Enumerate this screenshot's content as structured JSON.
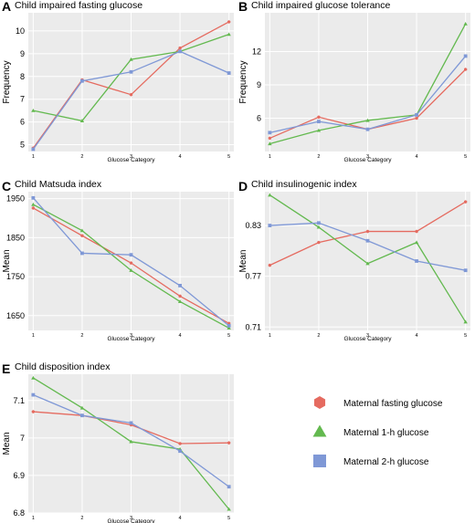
{
  "chart_data": [
    {
      "type": "line",
      "letter": "A",
      "title": "Child impaired fasting glucose",
      "xlabel": "Glucose Category",
      "ylabel": "Frequency",
      "x": [
        1,
        2,
        3,
        4,
        5
      ],
      "ylim": [
        4.7,
        10.8
      ],
      "yticks": [
        5,
        6,
        7,
        8,
        9,
        10
      ],
      "grid": true,
      "series": [
        {
          "name": "Maternal fasting glucose",
          "values": [
            4.85,
            7.85,
            7.2,
            9.25,
            10.4
          ]
        },
        {
          "name": "Maternal 1-h glucose",
          "values": [
            6.5,
            6.05,
            8.75,
            9.1,
            9.85
          ]
        },
        {
          "name": "Maternal 2-h glucose",
          "values": [
            4.8,
            7.8,
            8.2,
            9.1,
            8.15
          ]
        }
      ]
    },
    {
      "type": "line",
      "letter": "B",
      "title": "Child impaired glucose tolerance",
      "xlabel": "Glucose Category",
      "ylabel": "Frequency",
      "x": [
        1,
        2,
        3,
        4,
        5
      ],
      "ylim": [
        3.0,
        15.5
      ],
      "yticks": [
        6,
        9,
        12
      ],
      "grid": true,
      "series": [
        {
          "name": "Maternal fasting glucose",
          "values": [
            4.2,
            6.1,
            5.0,
            6.0,
            10.4
          ]
        },
        {
          "name": "Maternal 1-h glucose",
          "values": [
            3.7,
            4.9,
            5.8,
            6.3,
            14.5
          ]
        },
        {
          "name": "Maternal 2-h glucose",
          "values": [
            4.7,
            5.7,
            5.0,
            6.3,
            11.6
          ]
        }
      ]
    },
    {
      "type": "line",
      "letter": "C",
      "title": "Child Matsuda index",
      "xlabel": "Glucose Category",
      "ylabel": "Mean",
      "x": [
        1,
        2,
        3,
        4,
        5
      ],
      "ylim": [
        1612,
        1968
      ],
      "yticks": [
        1650,
        1750,
        1850,
        1950
      ],
      "grid": true,
      "series": [
        {
          "name": "Maternal fasting glucose",
          "values": [
            1926,
            1855,
            1785,
            1700,
            1630
          ]
        },
        {
          "name": "Maternal 1-h glucose",
          "values": [
            1935,
            1868,
            1766,
            1686,
            1618
          ]
        },
        {
          "name": "Maternal 2-h glucose",
          "values": [
            1952,
            1810,
            1806,
            1727,
            1624
          ]
        }
      ]
    },
    {
      "type": "line",
      "letter": "D",
      "title": "Child insulinogenic index",
      "xlabel": "Glucose Category",
      "ylabel": "Mean",
      "x": [
        1,
        2,
        3,
        4,
        5
      ],
      "ylim": [
        0.706,
        0.87
      ],
      "yticks": [
        0.71,
        0.77,
        0.83
      ],
      "grid": true,
      "series": [
        {
          "name": "Maternal fasting glucose",
          "values": [
            0.783,
            0.81,
            0.823,
            0.823,
            0.858
          ]
        },
        {
          "name": "Maternal 1-h glucose",
          "values": [
            0.866,
            0.828,
            0.785,
            0.81,
            0.716
          ]
        },
        {
          "name": "Maternal 2-h glucose",
          "values": [
            0.83,
            0.833,
            0.812,
            0.788,
            0.777
          ]
        }
      ]
    },
    {
      "type": "line",
      "letter": "E",
      "title": "Child disposition index",
      "xlabel": "Glucose Category",
      "ylabel": "Mean",
      "x": [
        1,
        2,
        3,
        4,
        5
      ],
      "ylim": [
        6.8,
        7.17
      ],
      "yticks": [
        6.8,
        6.9,
        7.0,
        7.1
      ],
      "grid": true,
      "series": [
        {
          "name": "Maternal fasting glucose",
          "values": [
            7.07,
            7.06,
            7.035,
            6.985,
            6.987
          ]
        },
        {
          "name": "Maternal 1-h glucose",
          "values": [
            7.16,
            7.08,
            6.99,
            6.97,
            6.81
          ]
        },
        {
          "name": "Maternal 2-h glucose",
          "values": [
            7.115,
            7.06,
            7.04,
            6.965,
            6.87
          ]
        }
      ]
    }
  ],
  "legend": {
    "items": [
      {
        "name": "Maternal fasting glucose",
        "color": "#e56b60",
        "marker": "hexagon"
      },
      {
        "name": "Maternal 1-h glucose",
        "color": "#63b94f",
        "marker": "triangle"
      },
      {
        "name": "Maternal 2-h glucose",
        "color": "#7f98d6",
        "marker": "square"
      }
    ]
  },
  "colors": {
    "panel_bg": "#ebebeb",
    "grid": "#ffffff",
    "fasting": "#e56b60",
    "one_hour": "#63b94f",
    "two_hour": "#7f98d6"
  }
}
